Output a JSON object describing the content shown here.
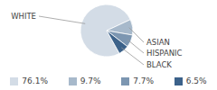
{
  "chart_data": {
    "type": "pie",
    "categories": [
      "WHITE",
      "ASIAN",
      "HISPANIC",
      "BLACK"
    ],
    "values": [
      76.1,
      9.7,
      7.7,
      6.5
    ],
    "value_labels": [
      "76.1%",
      "9.7%",
      "7.7%",
      "6.5%"
    ],
    "colors": [
      "#d3dce6",
      "#a7b9cb",
      "#7c96b1",
      "#3c628a"
    ]
  }
}
